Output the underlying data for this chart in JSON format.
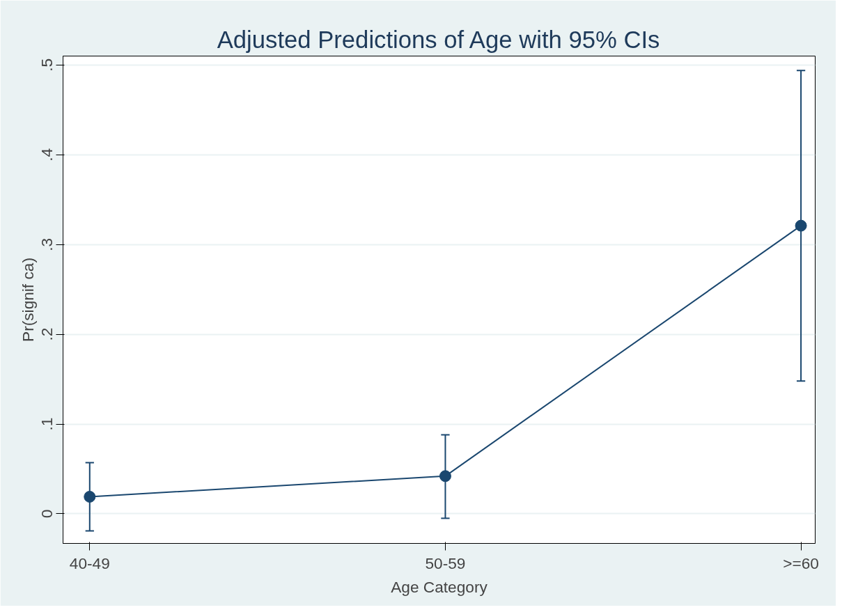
{
  "chart_data": {
    "type": "line",
    "title": "Adjusted Predictions of Age with 95% CIs",
    "xlabel": "Age Category",
    "ylabel": "Pr(signif ca)",
    "categories": [
      "40-49",
      "50-59",
      ">=60"
    ],
    "series": [
      {
        "color": "#1a476f",
        "values": [
          0.019,
          0.042,
          0.321
        ],
        "errors": [
          [
            -0.019,
            0.057
          ],
          [
            -0.005,
            0.088
          ],
          [
            0.148,
            0.494
          ]
        ]
      }
    ],
    "ylim": [
      -0.033,
      0.51
    ],
    "yticks": [
      {
        "value": 0,
        "label": "0"
      },
      {
        "value": 0.1,
        "label": ".1"
      },
      {
        "value": 0.2,
        "label": ".2"
      },
      {
        "value": 0.3,
        "label": ".3"
      },
      {
        "value": 0.4,
        "label": ".4"
      },
      {
        "value": 0.5,
        "label": ".5"
      }
    ],
    "grid": "y",
    "marker": "circle",
    "line_style": "solid"
  }
}
